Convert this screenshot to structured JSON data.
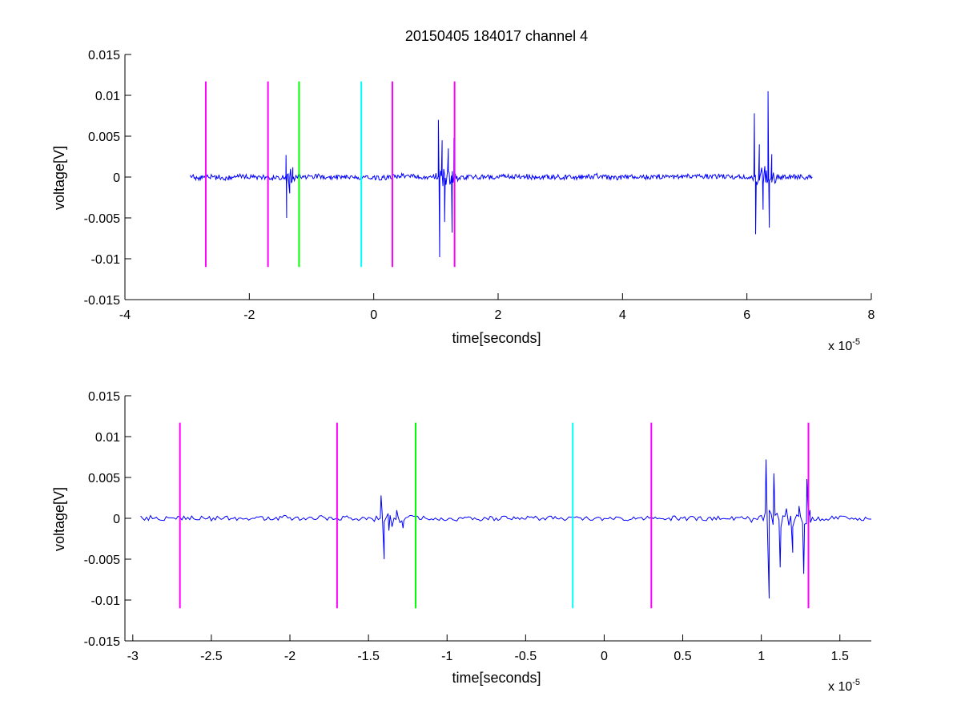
{
  "chart_data": [
    {
      "type": "line",
      "title": "20150405 184017 channel 4",
      "xlabel": "time[seconds]",
      "ylabel": "voltage[V]",
      "x_multiplier": "x 10",
      "x_multiplier_exp": "-5",
      "xlim": [
        -4,
        8
      ],
      "ylim": [
        -0.015,
        0.015
      ],
      "xticks": [
        -4,
        -2,
        0,
        2,
        4,
        6,
        8
      ],
      "xtick_labels": [
        "-4",
        "-2",
        "0",
        "2",
        "4",
        "6",
        "8"
      ],
      "yticks": [
        -0.015,
        -0.01,
        -0.005,
        0,
        0.005,
        0.01,
        0.015
      ],
      "ytick_labels": [
        "-0.015",
        "-0.01",
        "-0.005",
        "0",
        "0.005",
        "0.01",
        "0.015"
      ],
      "signal": {
        "color": "#0000ff",
        "x_range": [
          -2.95,
          7.05
        ],
        "noise_amplitude": 0.0003,
        "bursts": [
          {
            "center": -1.38,
            "width": 0.12,
            "peaks": [
              [
                -1.41,
                0.0027
              ],
              [
                -1.4,
                -0.005
              ],
              [
                -1.35,
                -0.002
              ],
              [
                -1.3,
                0.0012
              ]
            ]
          },
          {
            "center": 1.15,
            "width": 0.25,
            "peaks": [
              [
                1.04,
                0.007
              ],
              [
                1.06,
                -0.0098
              ],
              [
                1.1,
                0.0045
              ],
              [
                1.14,
                -0.0055
              ],
              [
                1.2,
                0.0035
              ],
              [
                1.26,
                -0.0068
              ],
              [
                1.29,
                0.0048
              ]
            ]
          },
          {
            "center": 6.3,
            "width": 0.25,
            "peaks": [
              [
                6.12,
                0.0078
              ],
              [
                6.14,
                -0.007
              ],
              [
                6.2,
                0.004
              ],
              [
                6.26,
                -0.004
              ],
              [
                6.34,
                0.0105
              ],
              [
                6.36,
                -0.0062
              ],
              [
                6.4,
                0.0028
              ]
            ]
          }
        ]
      },
      "markers": [
        {
          "x": -2.7,
          "color": "#ff00ff",
          "y_range": [
            -0.011,
            0.0117
          ]
        },
        {
          "x": -1.7,
          "color": "#ff00ff",
          "y_range": [
            -0.011,
            0.0117
          ]
        },
        {
          "x": -1.2,
          "color": "#00ff00",
          "y_range": [
            -0.011,
            0.0117
          ]
        },
        {
          "x": -0.2,
          "color": "#00ffff",
          "y_range": [
            -0.011,
            0.0117
          ]
        },
        {
          "x": 0.3,
          "color": "#ff00ff",
          "y_range": [
            -0.011,
            0.0117
          ]
        },
        {
          "x": 1.3,
          "color": "#ff00ff",
          "y_range": [
            -0.011,
            0.0117
          ]
        }
      ]
    },
    {
      "type": "line",
      "title": "",
      "xlabel": "time[seconds]",
      "ylabel": "voltage[V]",
      "x_multiplier": "x 10",
      "x_multiplier_exp": "-5",
      "xlim": [
        -3.05,
        1.7
      ],
      "ylim": [
        -0.015,
        0.015
      ],
      "xticks": [
        -3,
        -2.5,
        -2,
        -1.5,
        -1,
        -0.5,
        0,
        0.5,
        1,
        1.5
      ],
      "xtick_labels": [
        "-3",
        "-2.5",
        "-2",
        "-1.5",
        "-1",
        "-0.5",
        "0",
        "0.5",
        "1",
        "1.5"
      ],
      "yticks": [
        -0.015,
        -0.01,
        -0.005,
        0,
        0.005,
        0.01,
        0.015
      ],
      "ytick_labels": [
        "-0.015",
        "-0.01",
        "-0.005",
        "0",
        "0.005",
        "0.01",
        "0.015"
      ],
      "signal": {
        "color": "#0000ff",
        "x_range": [
          -2.95,
          1.7
        ],
        "noise_amplitude": 0.0003,
        "bursts": [
          {
            "center": -1.38,
            "width": 0.12,
            "peaks": [
              [
                -1.42,
                0.0028
              ],
              [
                -1.4,
                -0.005
              ],
              [
                -1.37,
                -0.0015
              ],
              [
                -1.32,
                0.001
              ],
              [
                -1.28,
                -0.0012
              ]
            ]
          },
          {
            "center": 1.15,
            "width": 0.25,
            "peaks": [
              [
                1.03,
                0.0072
              ],
              [
                1.05,
                -0.0098
              ],
              [
                1.08,
                0.0055
              ],
              [
                1.12,
                -0.006
              ],
              [
                1.16,
                0.0012
              ],
              [
                1.2,
                -0.0042
              ],
              [
                1.24,
                0.0015
              ],
              [
                1.27,
                -0.0068
              ],
              [
                1.29,
                0.0048
              ],
              [
                1.31,
                0.001
              ]
            ]
          }
        ]
      },
      "markers": [
        {
          "x": -2.7,
          "color": "#ff00ff",
          "y_range": [
            -0.011,
            0.0117
          ]
        },
        {
          "x": -1.7,
          "color": "#ff00ff",
          "y_range": [
            -0.011,
            0.0117
          ]
        },
        {
          "x": -1.2,
          "color": "#00ff00",
          "y_range": [
            -0.011,
            0.0117
          ]
        },
        {
          "x": -0.2,
          "color": "#00ffff",
          "y_range": [
            -0.011,
            0.0117
          ]
        },
        {
          "x": 0.3,
          "color": "#ff00ff",
          "y_range": [
            -0.011,
            0.0117
          ]
        },
        {
          "x": 1.3,
          "color": "#ff00ff",
          "y_range": [
            -0.011,
            0.0117
          ]
        }
      ]
    }
  ]
}
